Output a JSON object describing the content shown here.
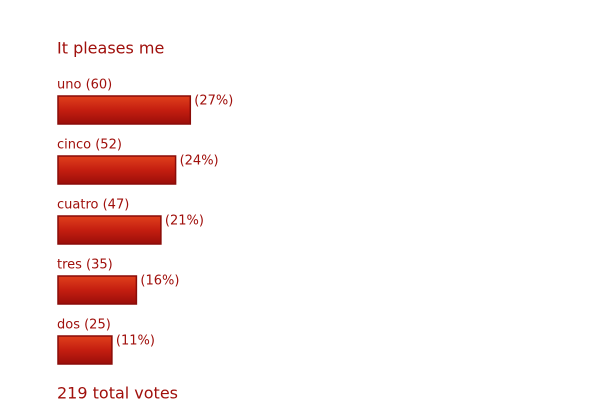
{
  "chart_data": {
    "type": "bar",
    "title": "It pleases me",
    "categories": [
      "uno (60)",
      "cinco (52)",
      "cuatro (47)",
      "tres (35)",
      "dos (25)"
    ],
    "values": [
      27,
      24,
      21,
      16,
      11
    ],
    "value_labels": [
      "(27%)",
      "(24%)",
      "(21%)",
      "(16%)",
      "(11%)"
    ],
    "color": "#c41e10",
    "footer": "219 total votes"
  }
}
